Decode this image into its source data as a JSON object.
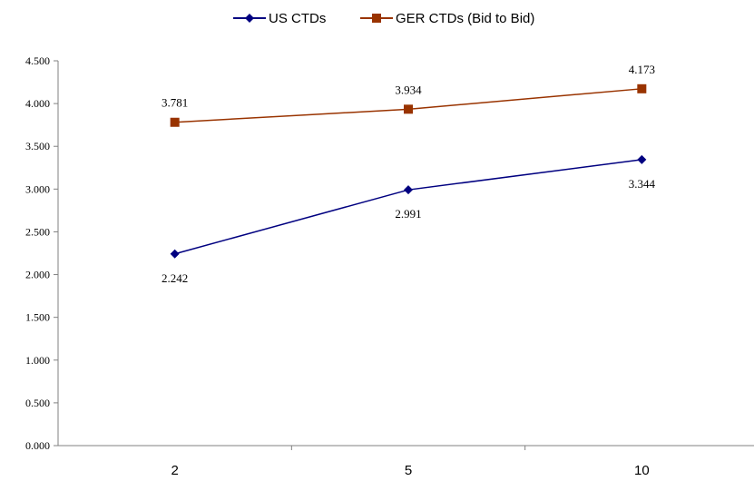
{
  "chart_data": {
    "type": "line",
    "title": "",
    "xlabel": "",
    "ylabel": "",
    "categories": [
      "2",
      "5",
      "10"
    ],
    "ylim": [
      0,
      4.5
    ],
    "yticks": [
      "0.000",
      "0.500",
      "1.000",
      "1.500",
      "2.000",
      "2.500",
      "3.000",
      "3.500",
      "4.000",
      "4.500"
    ],
    "grid": false,
    "legend_position": "top",
    "series": [
      {
        "name": "US CTDs",
        "values": [
          2.242,
          2.991,
          3.344
        ],
        "labels": [
          "2.242",
          "2.991",
          "3.344"
        ],
        "color": "#000080",
        "marker": "diamond",
        "label_position": "below"
      },
      {
        "name": "GER CTDs (Bid to Bid)",
        "values": [
          3.781,
          3.934,
          4.173
        ],
        "labels": [
          "3.781",
          "3.934",
          "4.173"
        ],
        "color": "#993300",
        "marker": "square",
        "label_position": "above"
      }
    ]
  }
}
